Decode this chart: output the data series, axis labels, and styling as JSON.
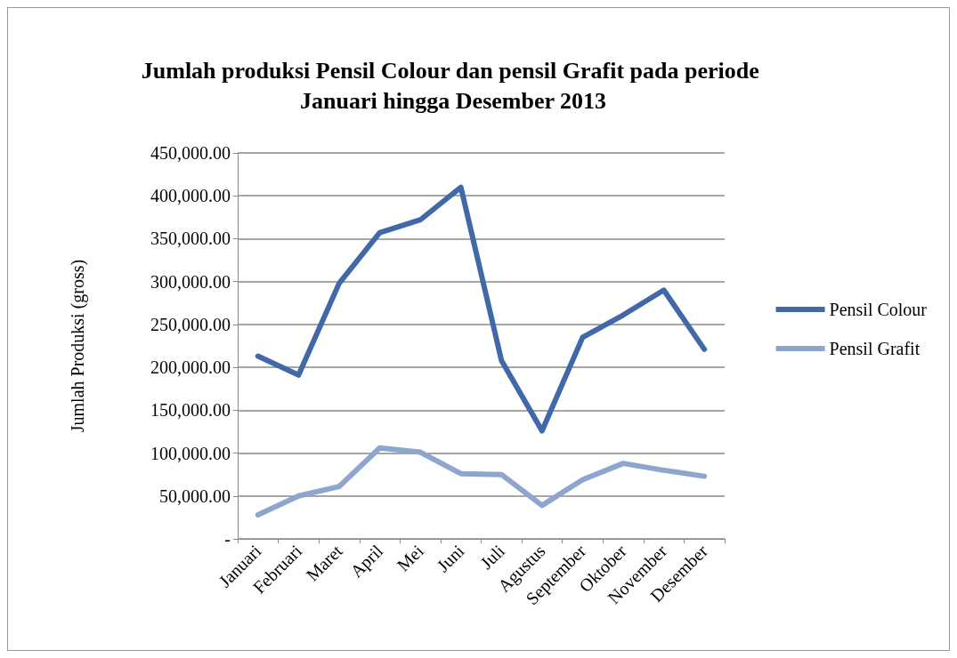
{
  "chart_data": {
    "type": "line",
    "title": "Jumlah produksi Pensil Colour dan pensil Grafit pada periode Januari hingga Desember 2013",
    "ylabel": "Jumlah Produksi (gross)",
    "categories": [
      "Januari",
      "Februari",
      "Maret",
      "April",
      "Mei",
      "Juni",
      "Juli",
      "Agustus",
      "September",
      "Oktober",
      "November",
      "Desember"
    ],
    "series": [
      {
        "name": "Pensil Colour",
        "color": "#4169a8",
        "values": [
          213000,
          191000,
          298000,
          357000,
          372000,
          410000,
          208000,
          126000,
          235000,
          261000,
          290000,
          221000
        ]
      },
      {
        "name": "Pensil Grafit",
        "color": "#8ea5cf",
        "values": [
          28000,
          50000,
          61000,
          106000,
          101000,
          76000,
          75000,
          39000,
          69000,
          88000,
          80000,
          73000
        ]
      }
    ],
    "ylim": [
      0,
      450000
    ],
    "yticks": [
      {
        "value": 0,
        "label": "-"
      },
      {
        "value": 50000,
        "label": "50,000.00"
      },
      {
        "value": 100000,
        "label": "100,000.00"
      },
      {
        "value": 150000,
        "label": "150,000.00"
      },
      {
        "value": 200000,
        "label": "200,000.00"
      },
      {
        "value": 250000,
        "label": "250,000.00"
      },
      {
        "value": 300000,
        "label": "300,000.00"
      },
      {
        "value": 350000,
        "label": "350,000.00"
      },
      {
        "value": 400000,
        "label": "400,000.00"
      },
      {
        "value": 450000,
        "label": "450,000.00"
      }
    ],
    "grid": "y",
    "legend": "right",
    "marker": "none",
    "line_style": "solid"
  }
}
